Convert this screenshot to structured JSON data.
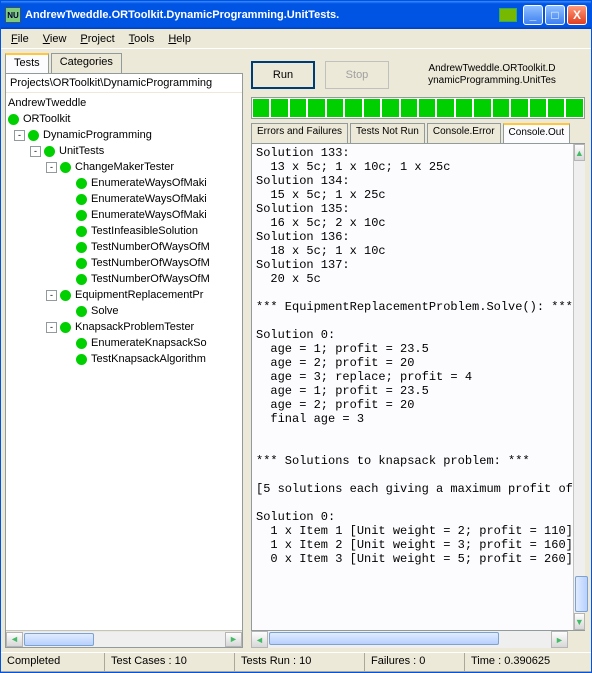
{
  "window": {
    "title": "AndrewTweddle.ORToolkit.DynamicProgramming.UnitTests."
  },
  "menu": {
    "file": "File",
    "view": "View",
    "project": "Project",
    "tools": "Tools",
    "help": "Help"
  },
  "sidebarTabs": {
    "tests": "Tests",
    "categories": "Categories"
  },
  "path": "Projects\\ORToolkit\\DynamicProgramming",
  "tree": {
    "root": "AndrewTweddle",
    "n1": "ORToolkit",
    "n2": "DynamicProgramming",
    "n3": "UnitTests",
    "n4": "ChangeMakerTester",
    "n4a": "EnumerateWaysOfMaki",
    "n4b": "EnumerateWaysOfMaki",
    "n4c": "EnumerateWaysOfMaki",
    "n4d": "TestInfeasibleSolution",
    "n4e": "TestNumberOfWaysOfM",
    "n4f": "TestNumberOfWaysOfM",
    "n4g": "TestNumberOfWaysOfM",
    "n5": "EquipmentReplacementPr",
    "n5a": "Solve",
    "n6": "KnapsackProblemTester",
    "n6a": "EnumerateKnapsackSo",
    "n6b": "TestKnapsackAlgorithm"
  },
  "buttons": {
    "run": "Run",
    "stop": "Stop"
  },
  "assembly": {
    "l1": "AndrewTweddle.ORToolkit.D",
    "l2": "ynamicProgramming.UnitTes"
  },
  "progress": {
    "segments": 18
  },
  "resultTabs": {
    "t1": "Errors and Failures",
    "t2": "Tests Not Run",
    "t3": "Console.Error",
    "t4": "Console.Out"
  },
  "console": "Solution 133:\n  13 x 5c; 1 x 10c; 1 x 25c\nSolution 134:\n  15 x 5c; 1 x 25c\nSolution 135:\n  16 x 5c; 2 x 10c\nSolution 136:\n  18 x 5c; 1 x 10c\nSolution 137:\n  20 x 5c\n\n*** EquipmentReplacementProblem.Solve(): ***\n\nSolution 0:\n  age = 1; profit = 23.5\n  age = 2; profit = 20\n  age = 3; replace; profit = 4\n  age = 1; profit = 23.5\n  age = 2; profit = 20\n  final age = 3\n\n\n*** Solutions to knapsack problem: ***\n\n[5 solutions each giving a maximum profit of\n\nSolution 0:\n  1 x Item 1 [Unit weight = 2; profit = 110]\n  1 x Item 2 [Unit weight = 3; profit = 160]\n  0 x Item 3 [Unit weight = 5; profit = 260]",
  "status": {
    "s1": "Completed",
    "s2": "Test Cases : 10",
    "s3": "Tests Run : 10",
    "s4": "Failures : 0",
    "s5": "Time : 0.390625"
  }
}
